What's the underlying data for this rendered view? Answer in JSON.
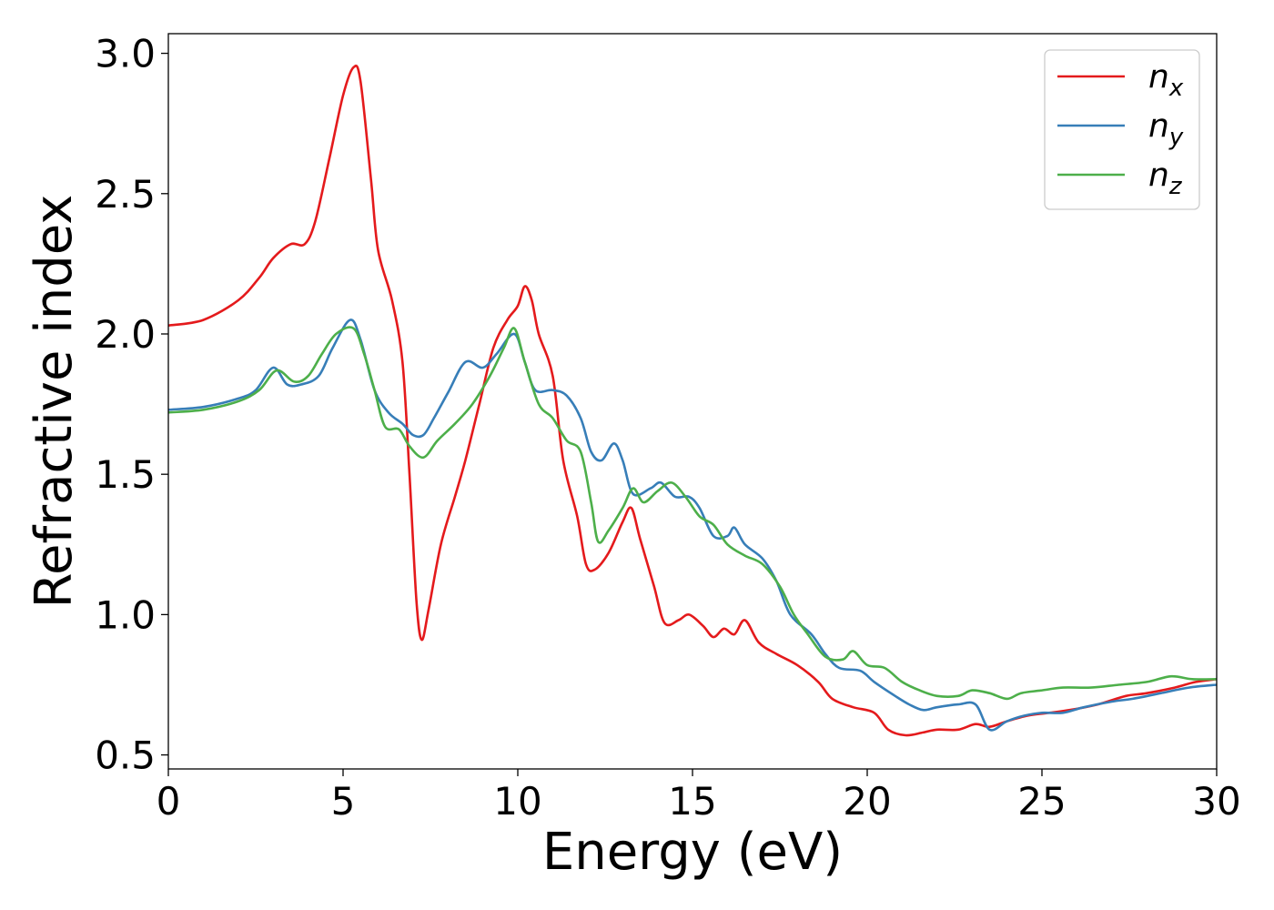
{
  "chart_data": {
    "type": "line",
    "title": "",
    "xlabel": "Energy (eV)",
    "ylabel": "Refractive index",
    "xlim": [
      0,
      30
    ],
    "ylim": [
      0.45,
      3.07
    ],
    "xticks": [
      0,
      5,
      10,
      15,
      20,
      25,
      30
    ],
    "xtick_labels": [
      "0",
      "5",
      "10",
      "15",
      "20",
      "25",
      "30"
    ],
    "yticks": [
      0.5,
      1.0,
      1.5,
      2.0,
      2.5,
      3.0
    ],
    "ytick_labels": [
      "0.5",
      "1.0",
      "1.5",
      "2.0",
      "2.5",
      "3.0"
    ],
    "grid": false,
    "legend_position": "top-right",
    "series": [
      {
        "name": "n_x",
        "label_base": "n",
        "label_sub": "x",
        "color": "#e41a1c",
        "points": [
          [
            0,
            2.03
          ],
          [
            1,
            2.05
          ],
          [
            2,
            2.12
          ],
          [
            2.6,
            2.2
          ],
          [
            3,
            2.27
          ],
          [
            3.5,
            2.32
          ],
          [
            3.9,
            2.32
          ],
          [
            4.2,
            2.4
          ],
          [
            4.6,
            2.62
          ],
          [
            5,
            2.85
          ],
          [
            5.3,
            2.95
          ],
          [
            5.5,
            2.9
          ],
          [
            5.8,
            2.55
          ],
          [
            6,
            2.3
          ],
          [
            6.4,
            2.12
          ],
          [
            6.7,
            1.9
          ],
          [
            6.9,
            1.5
          ],
          [
            7.1,
            1.05
          ],
          [
            7.25,
            0.91
          ],
          [
            7.45,
            1.02
          ],
          [
            7.8,
            1.25
          ],
          [
            8.2,
            1.42
          ],
          [
            8.5,
            1.55
          ],
          [
            8.9,
            1.75
          ],
          [
            9.3,
            1.95
          ],
          [
            9.7,
            2.05
          ],
          [
            10,
            2.1
          ],
          [
            10.2,
            2.17
          ],
          [
            10.4,
            2.12
          ],
          [
            10.6,
            2.0
          ],
          [
            11,
            1.85
          ],
          [
            11.3,
            1.55
          ],
          [
            11.7,
            1.35
          ],
          [
            11.95,
            1.18
          ],
          [
            12.2,
            1.16
          ],
          [
            12.6,
            1.22
          ],
          [
            13,
            1.33
          ],
          [
            13.25,
            1.38
          ],
          [
            13.5,
            1.27
          ],
          [
            13.9,
            1.1
          ],
          [
            14.2,
            0.97
          ],
          [
            14.6,
            0.98
          ],
          [
            14.9,
            1.0
          ],
          [
            15.3,
            0.96
          ],
          [
            15.6,
            0.92
          ],
          [
            15.9,
            0.95
          ],
          [
            16.2,
            0.93
          ],
          [
            16.5,
            0.98
          ],
          [
            16.9,
            0.9
          ],
          [
            17.4,
            0.86
          ],
          [
            18,
            0.82
          ],
          [
            18.6,
            0.76
          ],
          [
            19,
            0.7
          ],
          [
            19.6,
            0.67
          ],
          [
            20.2,
            0.65
          ],
          [
            20.6,
            0.59
          ],
          [
            21.1,
            0.57
          ],
          [
            21.6,
            0.58
          ],
          [
            22,
            0.59
          ],
          [
            22.6,
            0.59
          ],
          [
            23.1,
            0.61
          ],
          [
            23.5,
            0.6
          ],
          [
            24,
            0.62
          ],
          [
            24.6,
            0.64
          ],
          [
            25.2,
            0.65
          ],
          [
            25.8,
            0.66
          ],
          [
            26.6,
            0.68
          ],
          [
            27.4,
            0.71
          ],
          [
            28,
            0.72
          ],
          [
            28.8,
            0.74
          ],
          [
            29.4,
            0.76
          ],
          [
            30,
            0.77
          ]
        ]
      },
      {
        "name": "n_y",
        "label_base": "n",
        "label_sub": "y",
        "color": "#377eb8",
        "points": [
          [
            0,
            1.73
          ],
          [
            1,
            1.74
          ],
          [
            2,
            1.77
          ],
          [
            2.5,
            1.8
          ],
          [
            3,
            1.88
          ],
          [
            3.4,
            1.82
          ],
          [
            3.8,
            1.82
          ],
          [
            4.3,
            1.85
          ],
          [
            4.7,
            1.95
          ],
          [
            5.2,
            2.05
          ],
          [
            5.5,
            1.98
          ],
          [
            5.9,
            1.8
          ],
          [
            6.3,
            1.72
          ],
          [
            6.7,
            1.68
          ],
          [
            7,
            1.64
          ],
          [
            7.3,
            1.64
          ],
          [
            7.6,
            1.7
          ],
          [
            8,
            1.79
          ],
          [
            8.5,
            1.9
          ],
          [
            9,
            1.88
          ],
          [
            9.4,
            1.93
          ],
          [
            9.9,
            2.0
          ],
          [
            10.2,
            1.9
          ],
          [
            10.5,
            1.8
          ],
          [
            11,
            1.8
          ],
          [
            11.4,
            1.78
          ],
          [
            11.8,
            1.7
          ],
          [
            12.1,
            1.58
          ],
          [
            12.4,
            1.55
          ],
          [
            12.75,
            1.61
          ],
          [
            13,
            1.55
          ],
          [
            13.3,
            1.43
          ],
          [
            13.8,
            1.45
          ],
          [
            14.1,
            1.47
          ],
          [
            14.5,
            1.42
          ],
          [
            14.9,
            1.42
          ],
          [
            15.2,
            1.38
          ],
          [
            15.6,
            1.28
          ],
          [
            16,
            1.28
          ],
          [
            16.2,
            1.31
          ],
          [
            16.5,
            1.25
          ],
          [
            17,
            1.2
          ],
          [
            17.4,
            1.12
          ],
          [
            17.8,
            1.0
          ],
          [
            18.4,
            0.93
          ],
          [
            18.8,
            0.86
          ],
          [
            19.2,
            0.81
          ],
          [
            19.8,
            0.8
          ],
          [
            20.2,
            0.76
          ],
          [
            20.8,
            0.71
          ],
          [
            21.2,
            0.68
          ],
          [
            21.6,
            0.66
          ],
          [
            22,
            0.67
          ],
          [
            22.6,
            0.68
          ],
          [
            23.1,
            0.68
          ],
          [
            23.5,
            0.59
          ],
          [
            24,
            0.62
          ],
          [
            24.5,
            0.64
          ],
          [
            25,
            0.65
          ],
          [
            25.6,
            0.65
          ],
          [
            26.2,
            0.67
          ],
          [
            27,
            0.69
          ],
          [
            27.6,
            0.7
          ],
          [
            28.4,
            0.72
          ],
          [
            29.2,
            0.74
          ],
          [
            30,
            0.75
          ]
        ]
      },
      {
        "name": "n_z",
        "label_base": "n",
        "label_sub": "z",
        "color": "#4daf4a",
        "points": [
          [
            0,
            1.72
          ],
          [
            1,
            1.73
          ],
          [
            2,
            1.76
          ],
          [
            2.6,
            1.8
          ],
          [
            3.1,
            1.87
          ],
          [
            3.6,
            1.83
          ],
          [
            4,
            1.85
          ],
          [
            4.4,
            1.93
          ],
          [
            4.8,
            2.0
          ],
          [
            5.3,
            2.02
          ],
          [
            5.6,
            1.93
          ],
          [
            5.9,
            1.8
          ],
          [
            6.2,
            1.67
          ],
          [
            6.6,
            1.66
          ],
          [
            6.9,
            1.6
          ],
          [
            7.3,
            1.56
          ],
          [
            7.7,
            1.62
          ],
          [
            8.2,
            1.68
          ],
          [
            8.7,
            1.75
          ],
          [
            9.2,
            1.85
          ],
          [
            9.6,
            1.95
          ],
          [
            9.9,
            2.02
          ],
          [
            10.2,
            1.9
          ],
          [
            10.6,
            1.75
          ],
          [
            11,
            1.7
          ],
          [
            11.4,
            1.62
          ],
          [
            11.8,
            1.58
          ],
          [
            12.1,
            1.4
          ],
          [
            12.3,
            1.26
          ],
          [
            12.6,
            1.3
          ],
          [
            13,
            1.38
          ],
          [
            13.3,
            1.45
          ],
          [
            13.6,
            1.4
          ],
          [
            14,
            1.44
          ],
          [
            14.4,
            1.47
          ],
          [
            14.8,
            1.42
          ],
          [
            15.2,
            1.35
          ],
          [
            15.6,
            1.32
          ],
          [
            16,
            1.25
          ],
          [
            16.5,
            1.21
          ],
          [
            17,
            1.18
          ],
          [
            17.5,
            1.1
          ],
          [
            17.9,
            1.0
          ],
          [
            18.3,
            0.93
          ],
          [
            18.8,
            0.85
          ],
          [
            19.3,
            0.84
          ],
          [
            19.6,
            0.87
          ],
          [
            20,
            0.82
          ],
          [
            20.5,
            0.81
          ],
          [
            21,
            0.76
          ],
          [
            21.5,
            0.73
          ],
          [
            22,
            0.71
          ],
          [
            22.6,
            0.71
          ],
          [
            23,
            0.73
          ],
          [
            23.5,
            0.72
          ],
          [
            24,
            0.7
          ],
          [
            24.4,
            0.72
          ],
          [
            25,
            0.73
          ],
          [
            25.6,
            0.74
          ],
          [
            26.4,
            0.74
          ],
          [
            27.2,
            0.75
          ],
          [
            28,
            0.76
          ],
          [
            28.7,
            0.78
          ],
          [
            29.3,
            0.77
          ],
          [
            30,
            0.77
          ]
        ]
      }
    ]
  }
}
